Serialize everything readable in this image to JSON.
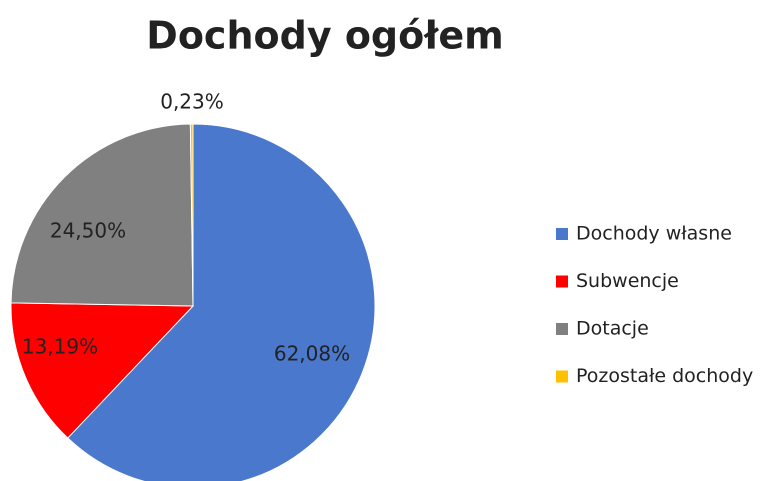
{
  "chart_data": {
    "type": "pie",
    "title": "Dochody ogółem",
    "categories": [
      "Dochody własne",
      "Subwencje",
      "Dotacje",
      "Pozostałe dochody"
    ],
    "values": [
      62.08,
      13.19,
      24.5,
      0.23
    ],
    "value_labels": [
      "62,08%",
      "13,19%",
      "24,50%",
      "0,23%"
    ],
    "colors": [
      "#4a78cc",
      "#ff0000",
      "#808080",
      "#ffc000"
    ],
    "legend": "right"
  }
}
